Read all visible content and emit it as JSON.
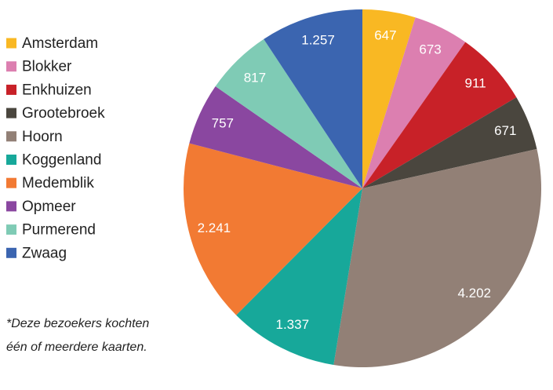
{
  "chart_data": {
    "type": "pie",
    "categories": [
      "Amsterdam",
      "Blokker",
      "Enkhuizen",
      "Grootebroek",
      "Hoorn",
      "Koggenland",
      "Medemblik",
      "Opmeer",
      "Purmerend",
      "Zwaag"
    ],
    "values": [
      647,
      673,
      911,
      671,
      4202,
      1337,
      2241,
      757,
      817,
      1257
    ],
    "value_labels": [
      "647",
      "673",
      "911",
      "671",
      "4.202",
      "1.337",
      "2.241",
      "757",
      "817",
      "1.257"
    ],
    "colors": [
      "#f9b823",
      "#dc7fb0",
      "#c82128",
      "#4a463e",
      "#928076",
      "#17a89a",
      "#f27a33",
      "#8a47a0",
      "#7fcbb5",
      "#3b65b0"
    ],
    "annotations": [
      "*Deze bezoekers kochten",
      "één of meerdere kaarten."
    ],
    "legend": "left"
  }
}
